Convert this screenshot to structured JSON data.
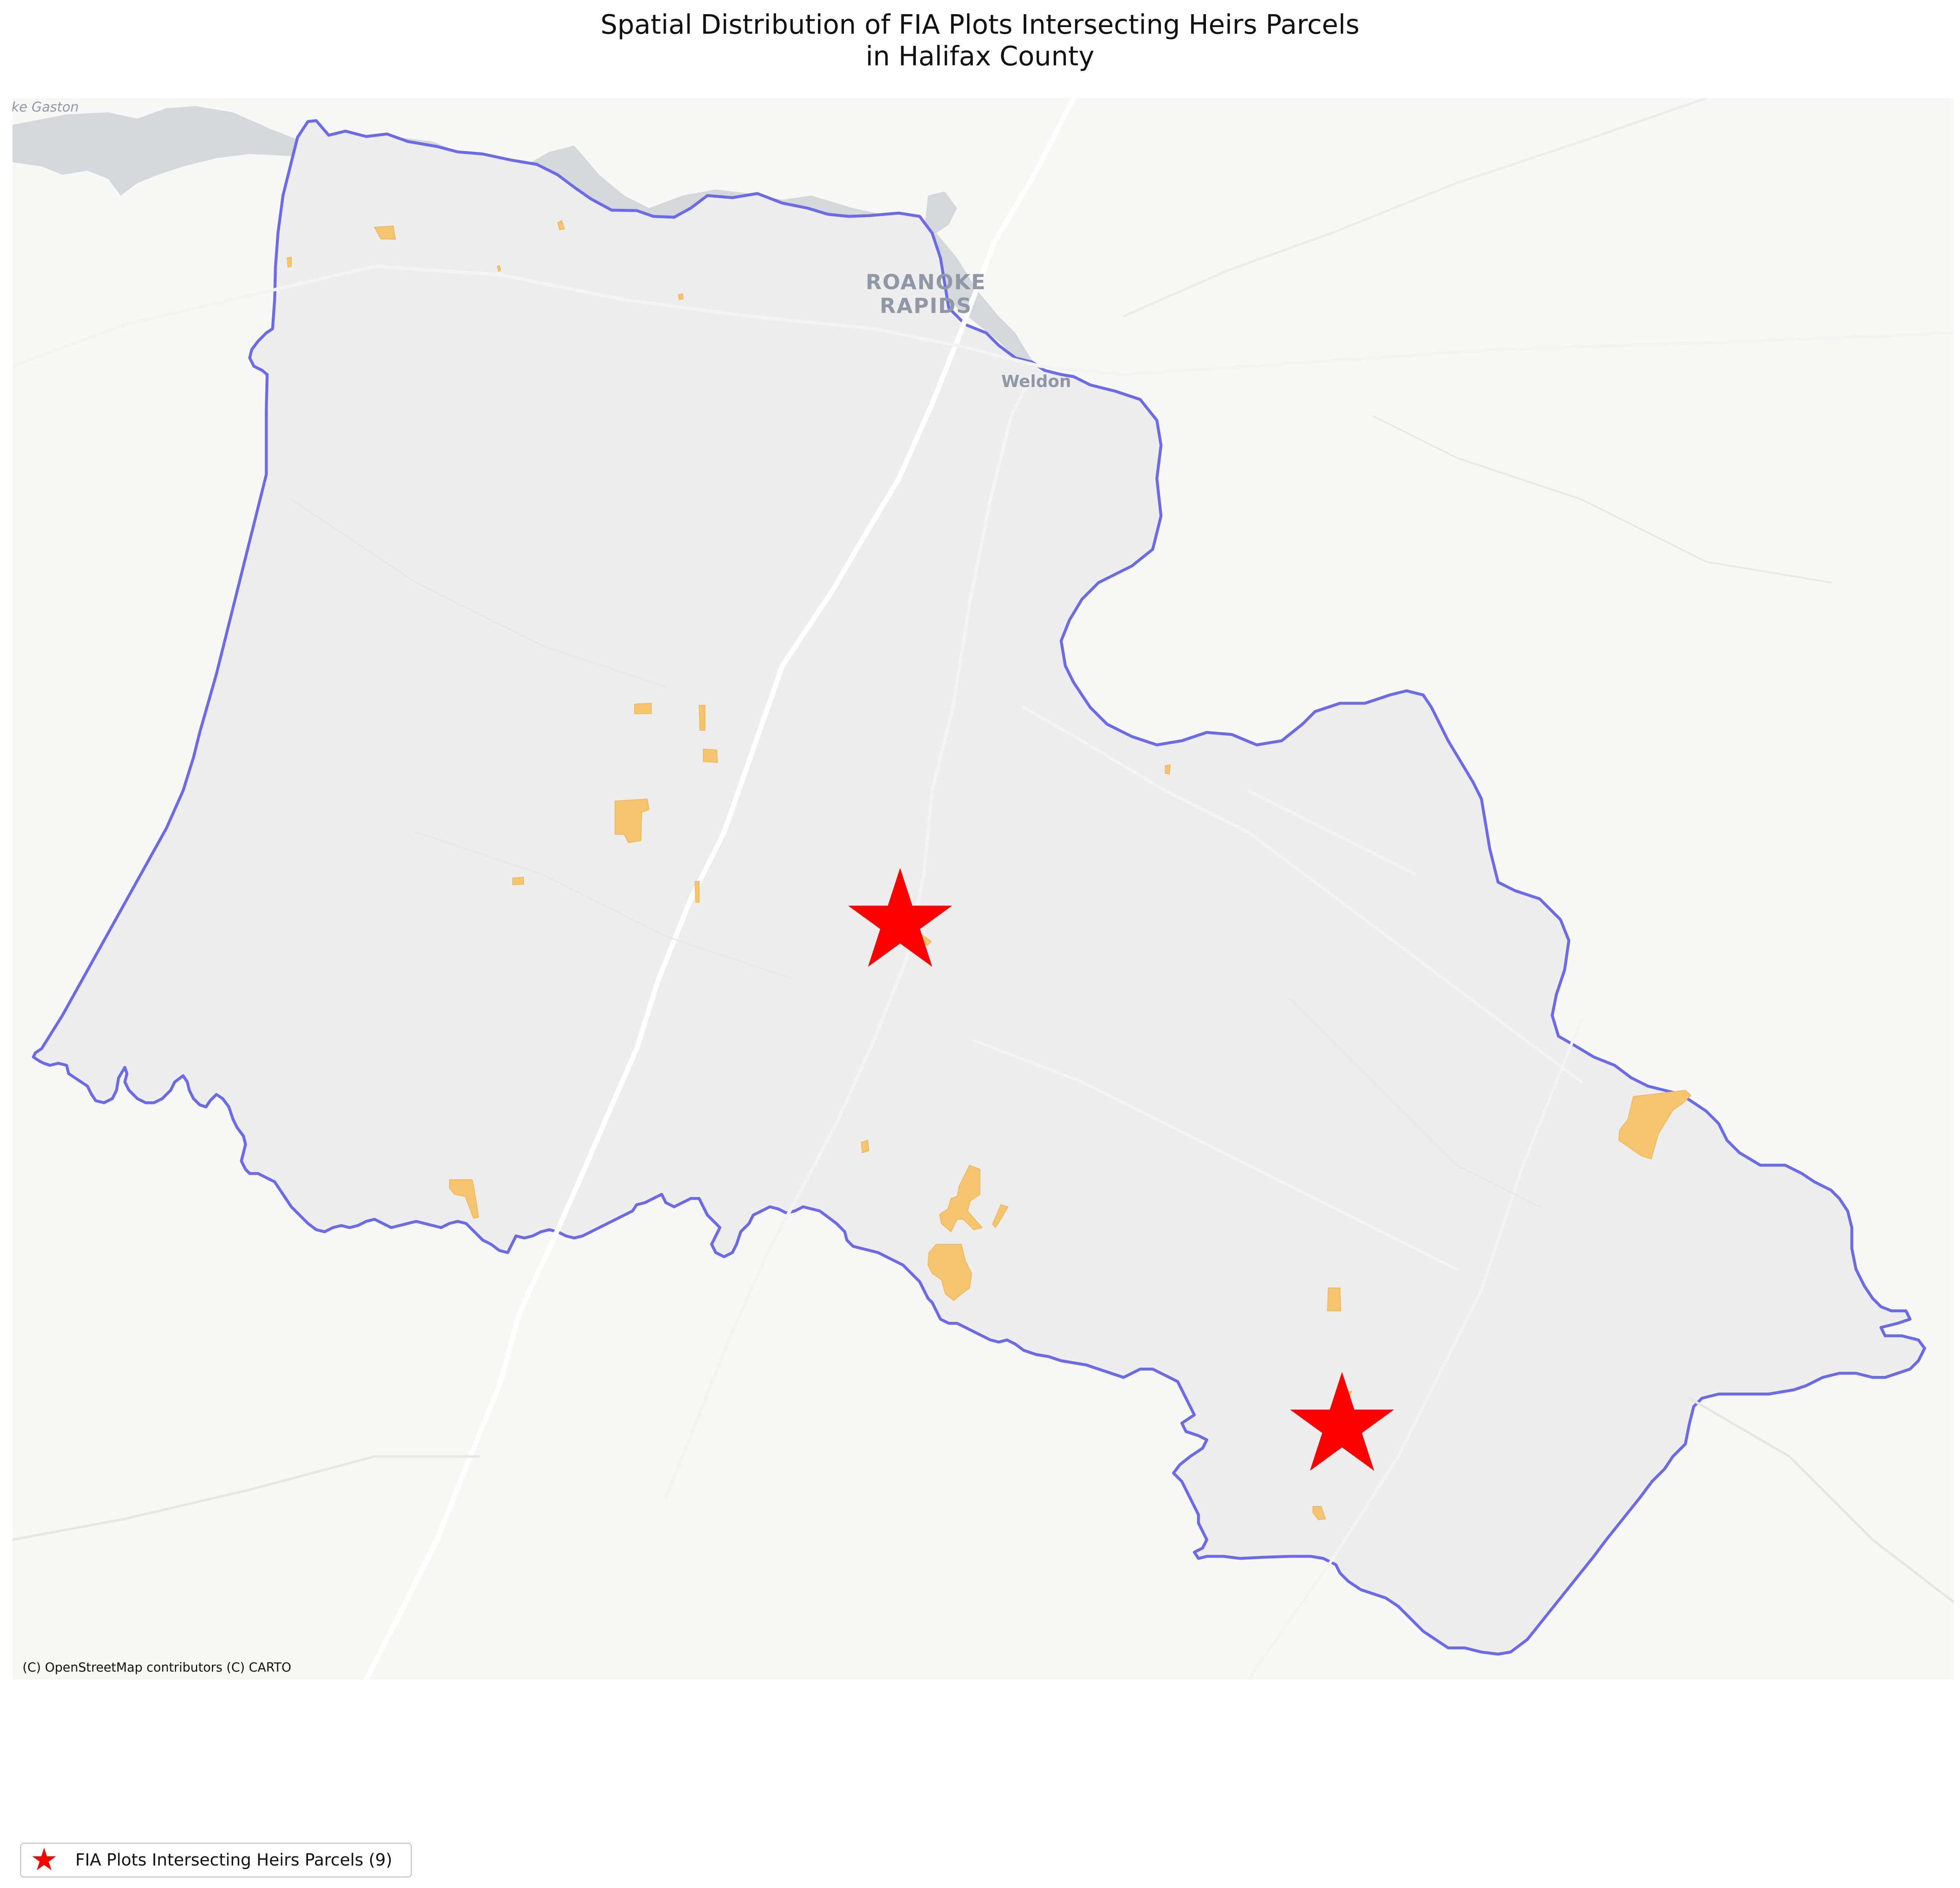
{
  "title_line1": "Spatial Distribution of FIA Plots Intersecting Heirs Parcels",
  "title_line2": "in Halifax County",
  "basemap": {
    "attribution": "(C) OpenStreetMap contributors (C) CARTO",
    "place_labels": [
      "ROANOKE",
      "RAPIDS",
      "Weldon",
      "Lake Gaston"
    ]
  },
  "layers": {
    "county_boundary": {
      "name": "Halifax County",
      "stroke_color": "#6b6bea",
      "fill_color": "#ededed"
    },
    "heirs_parcels": {
      "fill_color": "#f5c46e"
    },
    "fia_plots": {
      "marker": "star",
      "color": "#ff0000",
      "count": 9
    }
  },
  "legend": {
    "items": [
      {
        "symbol": "red-star",
        "label": "FIA Plots Intersecting Heirs Parcels (9)"
      }
    ]
  }
}
